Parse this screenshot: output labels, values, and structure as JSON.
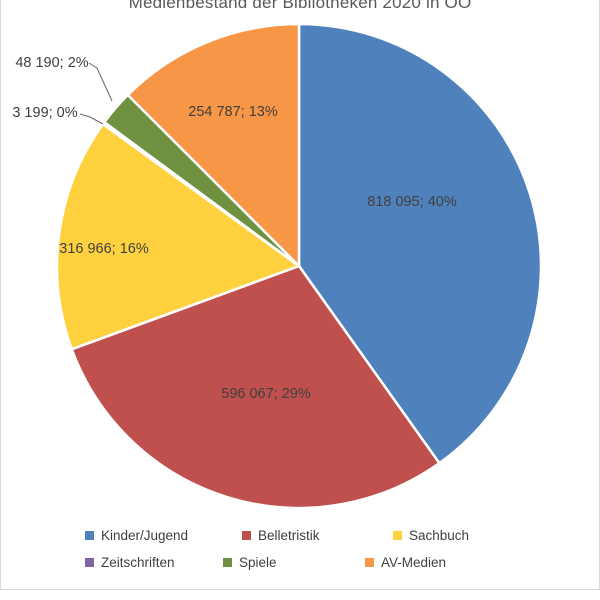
{
  "chart_data": {
    "type": "pie",
    "title": "Medienbestand der Bibliotheken 2020 in OÖ",
    "categories": [
      "Kinder/Jugend",
      "Belletristik",
      "Sachbuch",
      "Zeitschriften",
      "Spiele",
      "AV-Medien"
    ],
    "values": [
      818095,
      596067,
      316966,
      3199,
      48190,
      254787
    ],
    "colors": [
      "#4F81BD",
      "#C0504D",
      "#FFD13F",
      "#8064A2",
      "#6F9140",
      "#F79646"
    ],
    "data_labels": [
      "818 095; 40%",
      "596 067; 29%",
      "316 966; 16%",
      "3 199; 0%",
      "48 190; 2%",
      "254 787; 13%"
    ],
    "start_angle": 0,
    "direction": "clockwise",
    "legend_position": "bottom",
    "slice_border_color": "#ffffff",
    "label_color": "#404040",
    "title_color": "#595959"
  }
}
